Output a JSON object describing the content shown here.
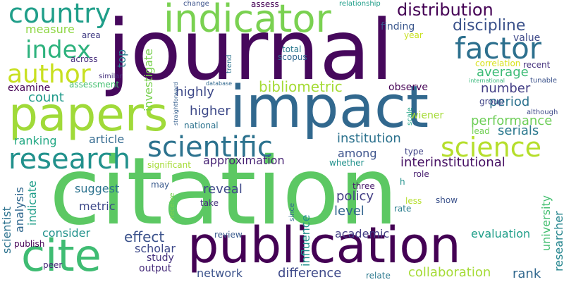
{
  "words": [
    {
      "text": "citation",
      "color": "#5cc863"
    },
    {
      "text": "journal",
      "color": "#46085c"
    },
    {
      "text": "impact",
      "color": "#31688e"
    },
    {
      "text": "publication",
      "color": "#440154"
    },
    {
      "text": "papers",
      "color": "#a0da39"
    },
    {
      "text": "cite",
      "color": "#3fbc73"
    },
    {
      "text": "indicator",
      "color": "#7ad151"
    },
    {
      "text": "scientific",
      "color": "#2c728e"
    },
    {
      "text": "factor",
      "color": "#2d708e"
    },
    {
      "text": "research",
      "color": "#21918c"
    },
    {
      "text": "science",
      "color": "#b5de2b"
    },
    {
      "text": "author",
      "color": "#c8e020"
    },
    {
      "text": "country",
      "color": "#1f9e89"
    },
    {
      "text": "index",
      "color": "#2db27d"
    },
    {
      "text": "distribution",
      "color": "#440154"
    },
    {
      "text": "discipline",
      "color": "#3b528b"
    },
    {
      "text": "bibliometric",
      "color": "#a5db36"
    },
    {
      "text": "performance",
      "color": "#6ece58"
    },
    {
      "text": "average",
      "color": "#3bbb75"
    },
    {
      "text": "measure",
      "color": "#8fd744"
    },
    {
      "text": "highly",
      "color": "#3e4989"
    },
    {
      "text": "higher",
      "color": "#3e4a89"
    },
    {
      "text": "count",
      "color": "#1f9a8a"
    },
    {
      "text": "examine",
      "color": "#440154"
    },
    {
      "text": "number",
      "color": "#433e85"
    },
    {
      "text": "period",
      "color": "#2c728e"
    },
    {
      "text": "institution",
      "color": "#2c728e"
    },
    {
      "text": "serials",
      "color": "#2a788e"
    },
    {
      "text": "ranking",
      "color": "#22a884"
    },
    {
      "text": "article",
      "color": "#31688e"
    },
    {
      "text": "approximation",
      "color": "#482475"
    },
    {
      "text": "interinstitutional",
      "color": "#471164"
    },
    {
      "text": "among",
      "color": "#3b528b"
    },
    {
      "text": "suggest",
      "color": "#2c728e"
    },
    {
      "text": "reveal",
      "color": "#3e4989"
    },
    {
      "text": "policy",
      "color": "#433e85"
    },
    {
      "text": "level",
      "color": "#32648e"
    },
    {
      "text": "metric",
      "color": "#3e4989"
    },
    {
      "text": "effect",
      "color": "#3b528b"
    },
    {
      "text": "consider",
      "color": "#21918c"
    },
    {
      "text": "scholar",
      "color": "#3e4989"
    },
    {
      "text": "study",
      "color": "#46337e"
    },
    {
      "text": "output",
      "color": "#472d7b"
    },
    {
      "text": "network",
      "color": "#3b528b"
    },
    {
      "text": "difference",
      "color": "#3e4989"
    },
    {
      "text": "collaboration",
      "color": "#a5db36"
    },
    {
      "text": "rank",
      "color": "#31688e"
    },
    {
      "text": "academic",
      "color": "#433e85"
    },
    {
      "text": "evaluation",
      "color": "#1f9e89"
    },
    {
      "text": "influence",
      "color": "#21918c"
    },
    {
      "text": "university",
      "color": "#44bf70"
    },
    {
      "text": "researcher",
      "color": "#25858e"
    },
    {
      "text": "scientist",
      "color": "#2c728e"
    },
    {
      "text": "analysis",
      "color": "#31688e"
    },
    {
      "text": "indicate",
      "color": "#1f9e89"
    },
    {
      "text": "investigate",
      "color": "#7ad151"
    },
    {
      "text": "top",
      "color": "#287d8e"
    },
    {
      "text": "value",
      "color": "#3e4989"
    },
    {
      "text": "finding",
      "color": "#39568c"
    },
    {
      "text": "year",
      "color": "#c8e020"
    },
    {
      "text": "total",
      "color": "#2a788e"
    },
    {
      "text": "scopus",
      "color": "#31688e"
    },
    {
      "text": "across",
      "color": "#472d7b"
    },
    {
      "text": "area",
      "color": "#433e85"
    },
    {
      "text": "assessment",
      "color": "#44bf70"
    },
    {
      "text": "observe",
      "color": "#440154"
    },
    {
      "text": "correlation",
      "color": "#d8e219"
    },
    {
      "text": "recent",
      "color": "#46337e"
    },
    {
      "text": "group",
      "color": "#414487"
    },
    {
      "text": "wiener",
      "color": "#a5db36"
    },
    {
      "text": "significant",
      "color": "#a5db36"
    },
    {
      "text": "national",
      "color": "#2c728e"
    },
    {
      "text": "type",
      "color": "#414487"
    },
    {
      "text": "role",
      "color": "#481f70"
    },
    {
      "text": "three",
      "color": "#481a6c"
    },
    {
      "text": "less",
      "color": "#b5de2b"
    },
    {
      "text": "rate",
      "color": "#287d8e"
    },
    {
      "text": "show",
      "color": "#3b528b"
    },
    {
      "text": "take",
      "color": "#46337e"
    },
    {
      "text": "may",
      "color": "#38598c"
    },
    {
      "text": "receive",
      "color": "#7ad151"
    },
    {
      "text": "review",
      "color": "#38598c"
    },
    {
      "text": "publish",
      "color": "#440154"
    },
    {
      "text": "peer",
      "color": "#482878"
    },
    {
      "text": "relate",
      "color": "#2a788e"
    },
    {
      "text": "since",
      "color": "#31688e"
    },
    {
      "text": "scale",
      "color": "#20a386"
    },
    {
      "text": "whether",
      "color": "#21918c"
    },
    {
      "text": "lead",
      "color": "#73d056"
    },
    {
      "text": "although",
      "color": "#3e4989"
    },
    {
      "text": "h",
      "color": "#21918c"
    },
    {
      "text": "change",
      "color": "#3b528b"
    },
    {
      "text": "assess",
      "color": "#440154"
    },
    {
      "text": "relationship",
      "color": "#1f9e89"
    },
    {
      "text": "trend",
      "color": "#2c728e"
    },
    {
      "text": "similar",
      "color": "#46327e"
    },
    {
      "text": "straightforward",
      "color": "#355f8d"
    },
    {
      "text": "database",
      "color": "#31688e"
    },
    {
      "text": "international",
      "color": "#35b779"
    },
    {
      "text": "tunable",
      "color": "#3b528b"
    }
  ]
}
